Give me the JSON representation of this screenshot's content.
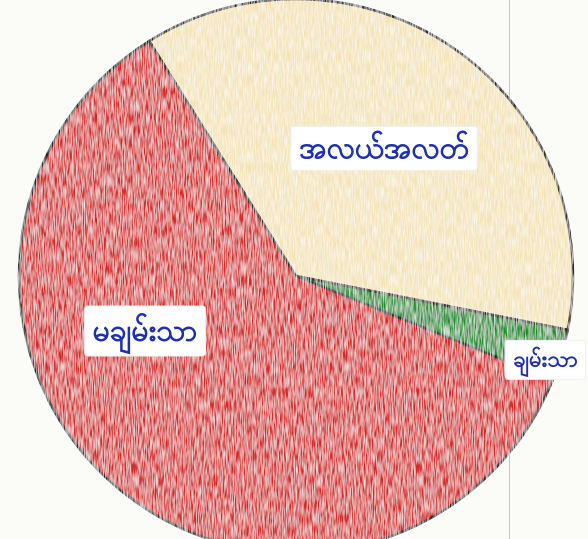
{
  "chart_data": {
    "type": "pie",
    "title": "",
    "slices": [
      {
        "label": "အလယ်အလတ်",
        "value": 37,
        "color": "#f3e3b6"
      },
      {
        "label": "ချမ်းသာ",
        "value": 3,
        "color": "#1b8f2a"
      },
      {
        "label": "မချမ်းသာ",
        "value": 60,
        "color": "#d62a2a"
      }
    ],
    "start_angle_deg": -122,
    "direction": "clockwise",
    "legend": "none",
    "style": "hand-drawn crayon"
  }
}
